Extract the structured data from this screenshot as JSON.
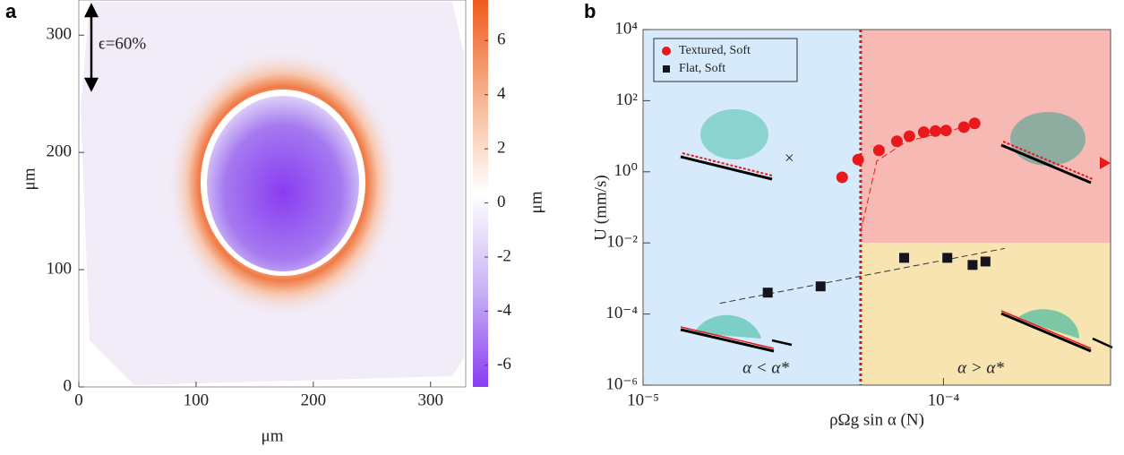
{
  "chart_data": [
    {
      "type": "heatmap",
      "panel_label": "a",
      "x_label": "μm",
      "y_label": "μm",
      "xlim": [
        0,
        330
      ],
      "xticks": [
        0,
        100,
        200,
        300
      ],
      "ylim": [
        0,
        330
      ],
      "yticks": [
        0,
        100,
        200,
        300
      ],
      "annotation": "ϵ=60%",
      "colorbar_label": "μm",
      "clim": [
        -6.8,
        7.5
      ],
      "colorbar_ticks": [
        -6,
        -4,
        -2,
        0,
        2,
        4,
        6
      ],
      "colormap": [
        "#8a3cf0",
        "#c9b3f4",
        "#ffffff",
        "#f6b48f",
        "#ee5a1e"
      ]
    },
    {
      "type": "scatter",
      "panel_label": "b",
      "x_label": "ρΩg sin α (N)",
      "y_label": "U (mm/s)",
      "log_x": true,
      "log_y": true,
      "xlim": [
        1e-05,
        0.00036
      ],
      "xticks": [
        {
          "value": 1e-05,
          "label": "10⁻⁵"
        },
        {
          "value": 0.0001,
          "label": "10⁻⁴"
        }
      ],
      "ylim": [
        1e-06,
        10000.0
      ],
      "yticks": [
        {
          "value": 1e-06,
          "label": "10⁻⁶"
        },
        {
          "value": 0.0001,
          "label": "10⁻⁴"
        },
        {
          "value": 0.01,
          "label": "10⁻²"
        },
        {
          "value": 1,
          "label": "10⁰"
        },
        {
          "value": 100,
          "label": "10²"
        },
        {
          "value": 10000,
          "label": "10⁴"
        }
      ],
      "threshold_x": 5.3e-05,
      "region_split_y": 0.01,
      "region_colors": [
        "#d7eafb",
        "#f6b9b3",
        "#f7e4b0"
      ],
      "region_labels": [
        "α < α*",
        "α > α*"
      ],
      "legend": "upper left",
      "series": [
        {
          "name": "Textured, Soft",
          "color": "#e8191c",
          "marker": "circle",
          "x": [
            4.6e-05,
            5.2e-05,
            6.1e-05,
            7e-05,
            7.7e-05,
            8.6e-05,
            9.4e-05,
            0.000102,
            0.000117,
            0.000127
          ],
          "values": [
            0.7,
            2.2,
            4.0,
            7.2,
            10,
            13,
            14,
            14.5,
            18,
            23
          ]
        },
        {
          "name": "Flat, Soft",
          "color": "#14141e",
          "marker": "square",
          "x": [
            2.6e-05,
            3.9e-05,
            7.4e-05,
            0.000103,
            0.000125,
            0.000138
          ],
          "values": [
            0.0004,
            0.0006,
            0.0038,
            0.0038,
            0.0024,
            0.003
          ]
        }
      ],
      "fits": [
        {
          "color": "#e8191c",
          "x": [
            5.3e-05,
            6e-05,
            7.5e-05,
            0.0001,
            0.000135
          ],
          "y": [
            0.02,
            2.0,
            7.0,
            13,
            24
          ]
        },
        {
          "color": "#333333",
          "x": [
            1.8e-05,
            0.00016
          ],
          "y": [
            0.0002,
            0.007
          ]
        }
      ]
    }
  ]
}
